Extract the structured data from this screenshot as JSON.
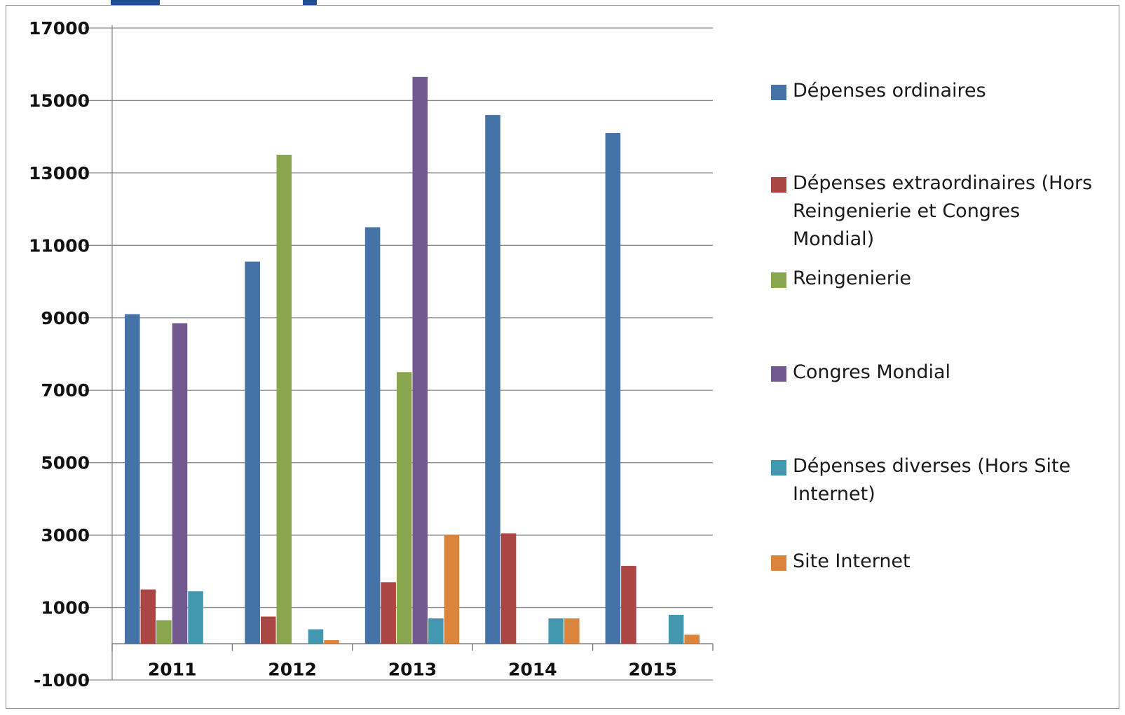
{
  "chart_data": {
    "type": "bar",
    "categories": [
      "2011",
      "2012",
      "2013",
      "2014",
      "2015"
    ],
    "series": [
      {
        "name": "Dépenses ordinaires",
        "color": "#4572a7",
        "values": [
          9100,
          10550,
          11500,
          14600,
          14100
        ]
      },
      {
        "name": "Dépenses extraordinaires (Hors Reingenierie  et Congres Mondial)",
        "color": "#aa4643",
        "values": [
          1500,
          750,
          1700,
          3050,
          2150
        ]
      },
      {
        "name": "Reingenierie",
        "color": "#89a54e",
        "values": [
          650,
          13500,
          7500,
          0,
          0
        ]
      },
      {
        "name": "Congres Mondial",
        "color": "#71588f",
        "values": [
          8850,
          0,
          15650,
          0,
          0
        ]
      },
      {
        "name": "Dépenses diverses (Hors Site Internet)",
        "color": "#4198af",
        "values": [
          1450,
          400,
          700,
          700,
          800
        ]
      },
      {
        "name": "Site Internet",
        "color": "#db843d",
        "values": [
          0,
          100,
          3000,
          700,
          250
        ]
      }
    ],
    "yticks": [
      "17000",
      "15000",
      "13000",
      "11000",
      "9000",
      "7000",
      "5000",
      "3000",
      "1000",
      "-1000"
    ],
    "ylim": [
      -1000,
      17000
    ],
    "grid": true,
    "legend": "right"
  }
}
